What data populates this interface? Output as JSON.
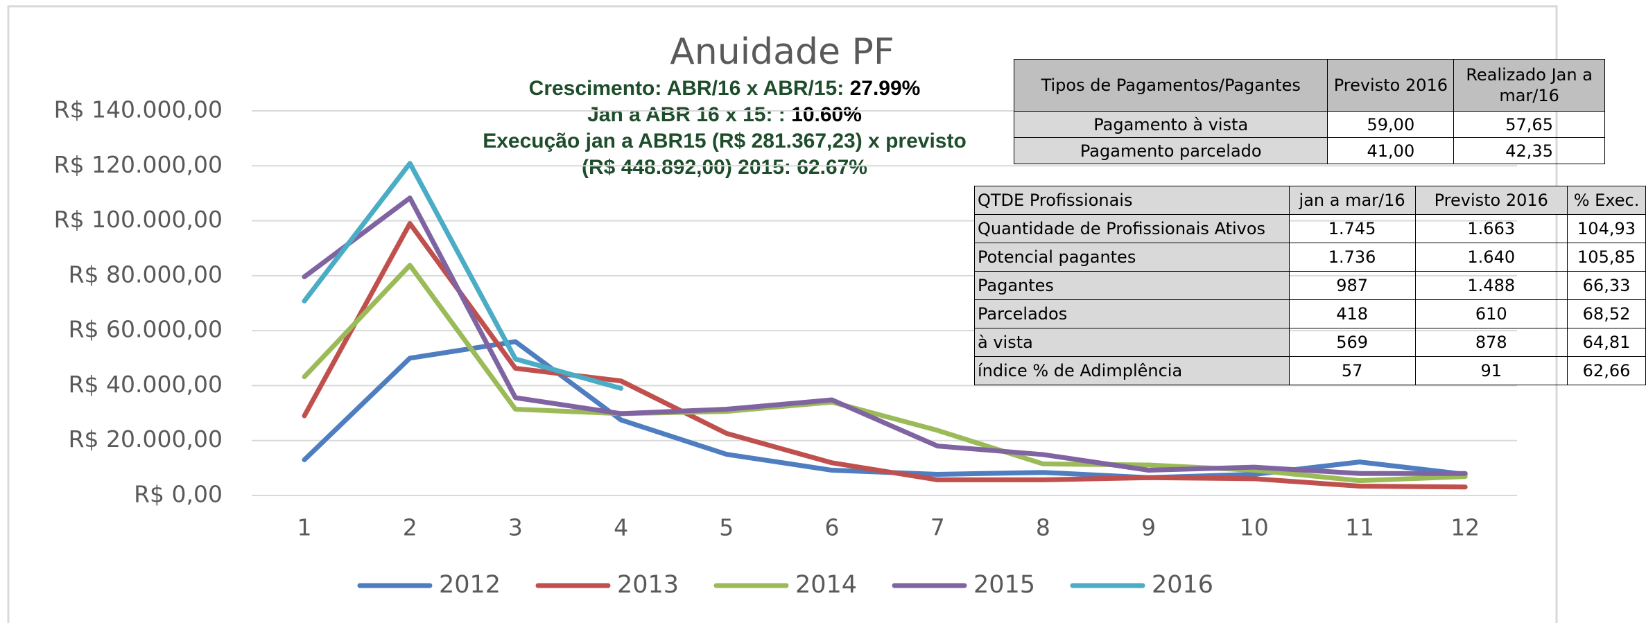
{
  "chart_data": {
    "type": "line",
    "title": "Anuidade PF",
    "annotations": [
      {
        "text": "Crescimento: ABR/16 x ABR/15:",
        "value": "27.99%"
      },
      {
        "text": "Jan a ABR 16 x 15: :",
        "value": "10.60%"
      },
      {
        "text": "Execução jan a ABR15 (R$ 281.367,23) x previsto"
      },
      {
        "text": "(R$ 448.892,00) 2015: 62.67%"
      }
    ],
    "categories": [
      "1",
      "2",
      "3",
      "4",
      "5",
      "6",
      "7",
      "8",
      "9",
      "10",
      "11",
      "12"
    ],
    "series": [
      {
        "name": "2012",
        "color": "#4e7dc0",
        "values": [
          13000,
          50000,
          56000,
          27500,
          15000,
          9200,
          7700,
          8400,
          6500,
          7700,
          12200,
          7700
        ]
      },
      {
        "name": "2013",
        "color": "#c0504d",
        "values": [
          29000,
          99000,
          46300,
          41700,
          22600,
          11900,
          5700,
          5700,
          6500,
          6100,
          3400,
          3100
        ]
      },
      {
        "name": "2014",
        "color": "#9bbb59",
        "values": [
          43200,
          83800,
          31400,
          29800,
          30600,
          34000,
          23700,
          11500,
          11100,
          9200,
          5400,
          6900
        ]
      },
      {
        "name": "2015",
        "color": "#8064a2",
        "values": [
          79600,
          108300,
          35600,
          29800,
          31400,
          34800,
          18000,
          14900,
          9200,
          10300,
          8000,
          8000
        ]
      },
      {
        "name": "2016",
        "color": "#4bacc6",
        "values": [
          70800,
          120900,
          49700,
          39000,
          null,
          null,
          null,
          null,
          null,
          null,
          null,
          null
        ]
      }
    ],
    "ylim": [
      0,
      140000
    ],
    "yticks": [
      {
        "value": 0,
        "label": "R$ 0,00"
      },
      {
        "value": 20000,
        "label": "R$ 20.000,00"
      },
      {
        "value": 40000,
        "label": "R$ 40.000,00"
      },
      {
        "value": 60000,
        "label": "R$ 60.000,00"
      },
      {
        "value": 80000,
        "label": "R$ 80.000,00"
      },
      {
        "value": 100000,
        "label": "R$ 100.000,00"
      },
      {
        "value": 120000,
        "label": "R$ 120.000,00"
      },
      {
        "value": 140000,
        "label": "R$ 140.000,00"
      }
    ],
    "grid": true,
    "legend": "bottom"
  },
  "tables": [
    {
      "header": [
        "Tipos de Pagamentos/Pagantes",
        "Previsto 2016",
        "Realizado Jan a mar/16"
      ],
      "rows": [
        [
          "Pagamento à vista",
          "59,00",
          "57,65"
        ],
        [
          "Pagamento parcelado",
          "41,00",
          "42,35"
        ]
      ]
    },
    {
      "header": [
        "QTDE Profissionais",
        "jan a mar/16",
        "Previsto 2016",
        "% Exec."
      ],
      "rows": [
        [
          "Quantidade de Profissionais Ativos",
          "1.745",
          "1.663",
          "104,93"
        ],
        [
          "Potencial pagantes",
          "1.736",
          "1.640",
          "105,85"
        ],
        [
          "Pagantes",
          "987",
          "1.488",
          "66,33"
        ],
        [
          "Parcelados",
          "418",
          "610",
          "68,52"
        ],
        [
          "à vista",
          "569",
          "878",
          "64,81"
        ],
        [
          "índice % de Adimplência",
          "57",
          "91",
          "62,66"
        ]
      ]
    }
  ]
}
